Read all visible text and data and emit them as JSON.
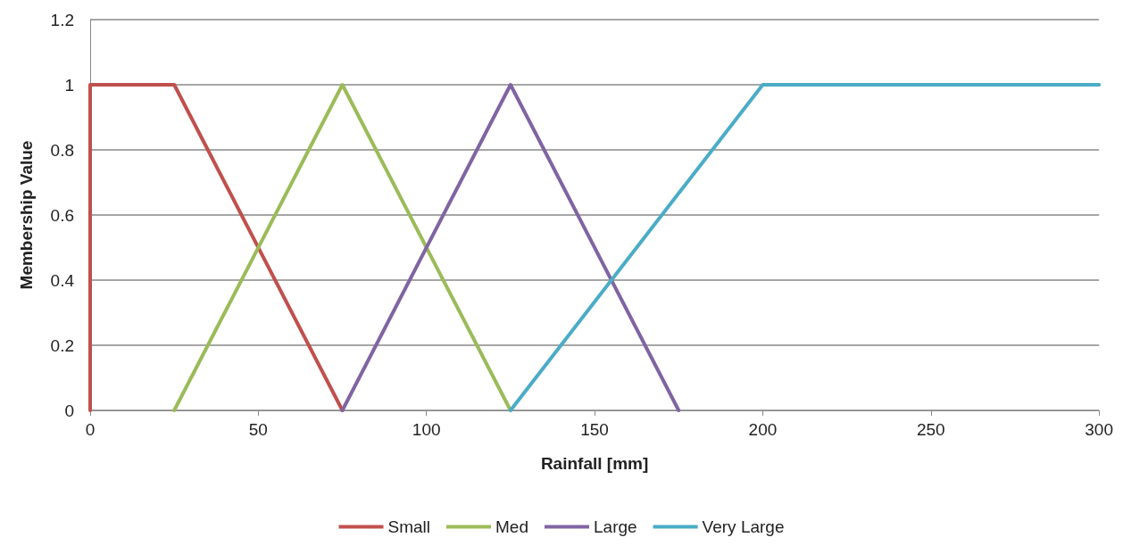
{
  "chart_data": {
    "type": "line",
    "xlabel": "Rainfall [mm]",
    "ylabel": "Membership Value",
    "series": [
      {
        "name": "Small",
        "color": "#c0504d",
        "x": [
          0,
          0,
          25,
          75
        ],
        "values": [
          0,
          1,
          1,
          0
        ]
      },
      {
        "name": "Med",
        "color": "#9bbb59",
        "x": [
          25,
          75,
          125
        ],
        "values": [
          0,
          1,
          0
        ]
      },
      {
        "name": "Large",
        "color": "#8064a2",
        "x": [
          75,
          125,
          175
        ],
        "values": [
          0,
          1,
          0
        ]
      },
      {
        "name": "Very Large",
        "color": "#4bacc6",
        "x": [
          125,
          200,
          300
        ],
        "values": [
          0,
          1,
          1
        ]
      }
    ],
    "xlim": [
      0,
      300
    ],
    "xticks": [
      0,
      50,
      100,
      150,
      200,
      250,
      300
    ],
    "ylim": [
      0,
      1.2
    ],
    "yticks": [
      0,
      0.2,
      0.4,
      0.6,
      0.8,
      1,
      1.2
    ],
    "grid": "y",
    "legend": "bottom",
    "marker": "none",
    "line_style": "solid"
  }
}
